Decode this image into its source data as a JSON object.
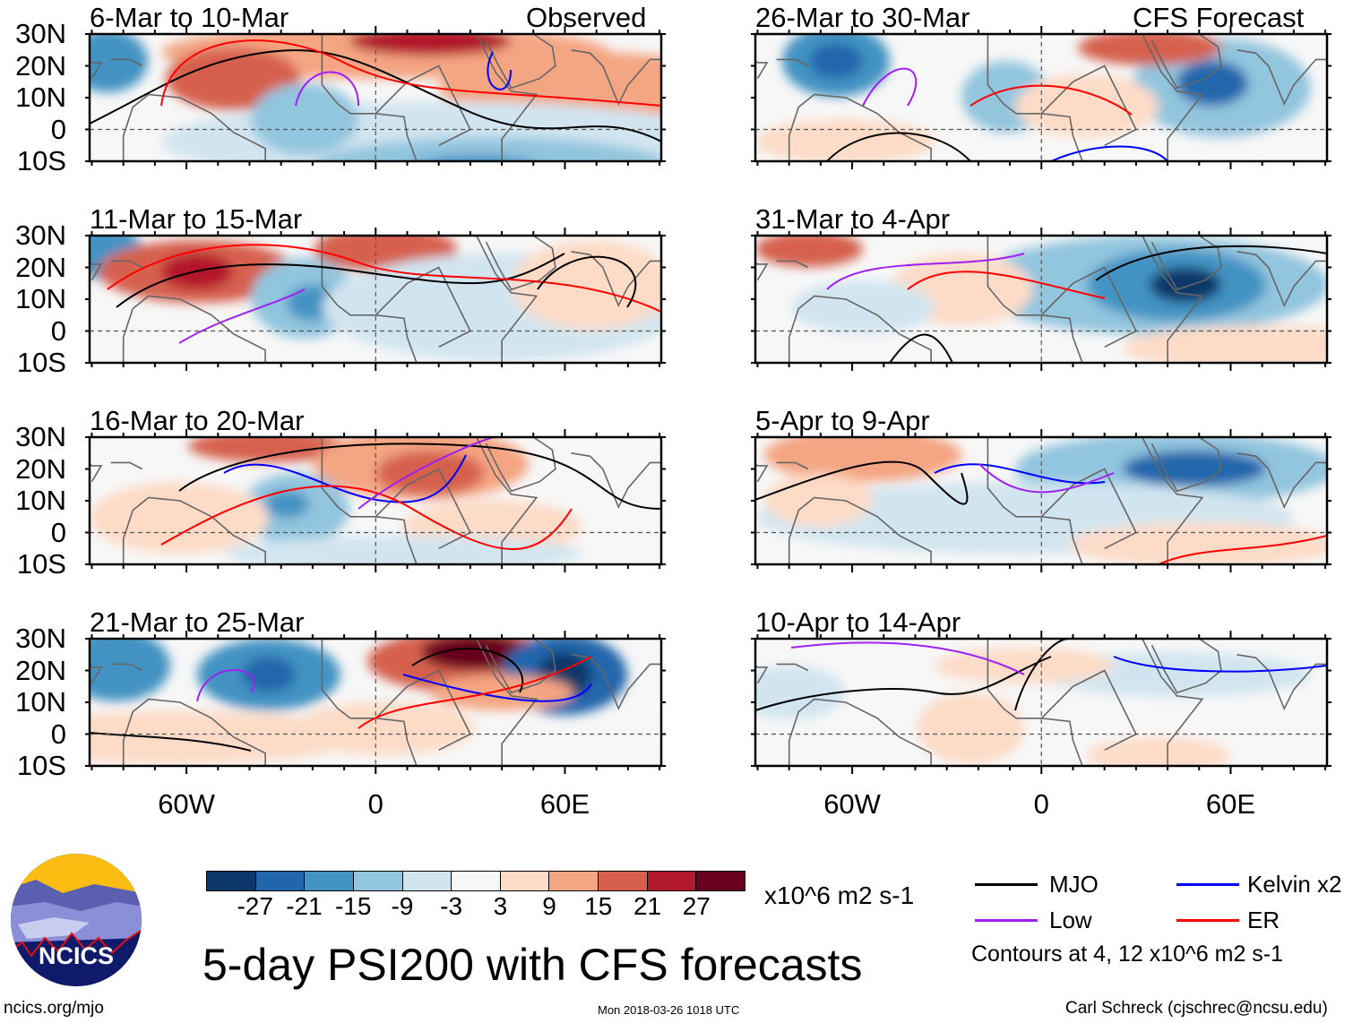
{
  "title": "5-day PSI200 with CFS forecasts",
  "column_labels": {
    "observed": "Observed",
    "forecast": "CFS Forecast"
  },
  "panels": [
    {
      "title": "6-Mar to 10-Mar",
      "group": "observed"
    },
    {
      "title": "11-Mar to 15-Mar",
      "group": "observed"
    },
    {
      "title": "16-Mar to 20-Mar",
      "group": "observed"
    },
    {
      "title": "21-Mar to 25-Mar",
      "group": "observed"
    },
    {
      "title": "26-Mar to 30-Mar",
      "group": "forecast"
    },
    {
      "title": "31-Mar to 4-Apr",
      "group": "forecast"
    },
    {
      "title": "5-Apr to 9-Apr",
      "group": "forecast"
    },
    {
      "title": "10-Apr to 14-Apr",
      "group": "forecast"
    }
  ],
  "lat_ticks": [
    "30N",
    "20N",
    "10N",
    "0",
    "10S"
  ],
  "lon_ticks": [
    "60W",
    "0",
    "60E"
  ],
  "colorbar": {
    "labels": [
      "-27",
      "-21",
      "-15",
      "-9",
      "-3",
      "3",
      "9",
      "15",
      "21",
      "27"
    ],
    "colors": [
      "#0c3768",
      "#2166ac",
      "#4393c3",
      "#92c5de",
      "#d1e5f0",
      "#f7f7f7",
      "#fddbc7",
      "#f4a582",
      "#d6604d",
      "#b2182b",
      "#67001f"
    ],
    "units": "x10^6 m2 s-1"
  },
  "legend": {
    "items": [
      {
        "label": "MJO",
        "color": "#000000"
      },
      {
        "label": "Kelvin x2",
        "color": "#0000ff"
      },
      {
        "label": "Low",
        "color": "#a020f0"
      },
      {
        "label": "ER",
        "color": "#ff0000"
      }
    ],
    "contours_note": "Contours at 4, 12 x10^6 m2 s-1"
  },
  "logo": {
    "text": "NCICS"
  },
  "footer": {
    "url": "ncics.org/mjo",
    "timestamp": "Mon 2018-03-26 1018 UTC",
    "author": "Carl Schreck (cjschrec@ncsu.edu)"
  }
}
